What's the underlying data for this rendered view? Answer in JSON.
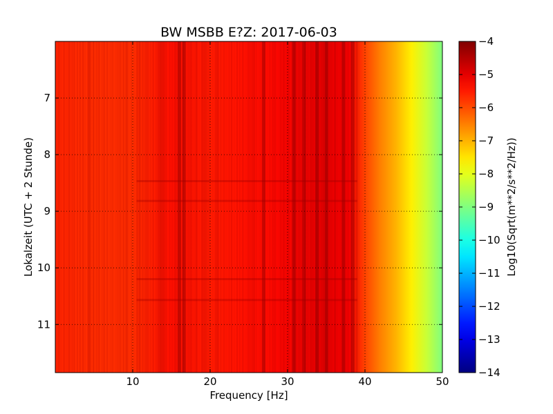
{
  "chart_data": {
    "type": "heatmap",
    "title": "BW MSBB E?Z: 2017-06-03",
    "xlabel": "Frequency [Hz]",
    "ylabel": "Lokalzeit (UTC + 2 Stunde)",
    "xlim": [
      0,
      50
    ],
    "ylim": [
      6.0,
      11.85
    ],
    "y_inverted": true,
    "x_ticks": [
      10,
      20,
      30,
      40,
      50
    ],
    "x_tick_labels": [
      "10",
      "20",
      "30",
      "40",
      "50"
    ],
    "y_ticks": [
      7,
      8,
      9,
      10,
      11
    ],
    "y_tick_labels": [
      "7",
      "8",
      "9",
      "10",
      "11"
    ],
    "grid": true,
    "colormap": "jet",
    "colorbar": {
      "label": "Log10(Sqrt(m**2/s**2/Hz))",
      "min": -14,
      "max": -4,
      "ticks": [
        -4,
        -5,
        -6,
        -7,
        -8,
        -9,
        -10,
        -11,
        -12,
        -13,
        -14
      ],
      "tick_labels": [
        "−4",
        "−5",
        "−6",
        "−7",
        "−8",
        "−9",
        "−10",
        "−11",
        "−12",
        "−13",
        "−14"
      ]
    },
    "spectrum_profile": {
      "frequency_hz": [
        0,
        5,
        10,
        15,
        20,
        25,
        30,
        35,
        38,
        40,
        42,
        44,
        46,
        48,
        50
      ],
      "level": [
        -5.6,
        -5.7,
        -5.7,
        -5.4,
        -5.5,
        -5.4,
        -5.3,
        -5.0,
        -5.2,
        -5.9,
        -6.5,
        -7.0,
        -7.6,
        -8.3,
        -9.0
      ]
    }
  }
}
